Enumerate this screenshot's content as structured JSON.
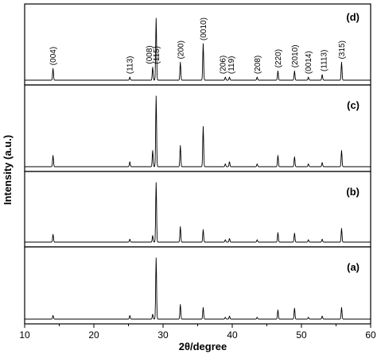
{
  "chart_data": {
    "type": "line",
    "xlabel": "2θ/degree",
    "ylabel": "Intensity (a.u.)",
    "xlim": [
      10,
      60
    ],
    "x_ticks": [
      10,
      20,
      30,
      40,
      50,
      60
    ],
    "x_tick_labels": [
      "10",
      "20",
      "30",
      "40",
      "50",
      "60"
    ],
    "grid": false,
    "peaks_2theta": [
      14.1,
      25.2,
      28.5,
      29.0,
      32.5,
      35.8,
      39.0,
      39.6,
      43.6,
      46.6,
      49.0,
      51.0,
      53.0,
      55.8
    ],
    "series": [
      {
        "name": "(d)",
        "peak_intensity": [
          0.19,
          0.05,
          0.21,
          1.0,
          0.29,
          0.59,
          0.05,
          0.05,
          0.05,
          0.15,
          0.15,
          0.05,
          0.09,
          0.29
        ]
      },
      {
        "name": "(c)",
        "peak_intensity": [
          0.16,
          0.07,
          0.23,
          1.0,
          0.3,
          0.57,
          0.04,
          0.07,
          0.04,
          0.16,
          0.14,
          0.04,
          0.06,
          0.23
        ]
      },
      {
        "name": "(b)",
        "peak_intensity": [
          0.13,
          0.05,
          0.11,
          1.0,
          0.26,
          0.21,
          0.04,
          0.06,
          0.04,
          0.16,
          0.15,
          0.04,
          0.05,
          0.23
        ]
      },
      {
        "name": "(a)",
        "peak_intensity": [
          0.06,
          0.06,
          0.08,
          1.0,
          0.24,
          0.19,
          0.03,
          0.05,
          0.03,
          0.15,
          0.18,
          0.03,
          0.05,
          0.19
        ]
      }
    ],
    "annotations": [
      {
        "text": "(004)",
        "x": 14.1
      },
      {
        "text": "(113)",
        "x": 25.2
      },
      {
        "text": "(008)",
        "x": 28.0
      },
      {
        "text": "(115)",
        "x": 29.0
      },
      {
        "text": "(200)",
        "x": 32.5
      },
      {
        "text": "(0010)",
        "x": 35.8
      },
      {
        "text": "(206)",
        "x": 38.6
      },
      {
        "text": "(119)",
        "x": 39.8
      },
      {
        "text": "(208)",
        "x": 43.6
      },
      {
        "text": "(220)",
        "x": 46.6
      },
      {
        "text": "(2010)",
        "x": 49.0
      },
      {
        "text": "(0014)",
        "x": 51.0
      },
      {
        "text": "(1113)",
        "x": 53.2
      },
      {
        "text": "(315)",
        "x": 55.8
      }
    ]
  }
}
